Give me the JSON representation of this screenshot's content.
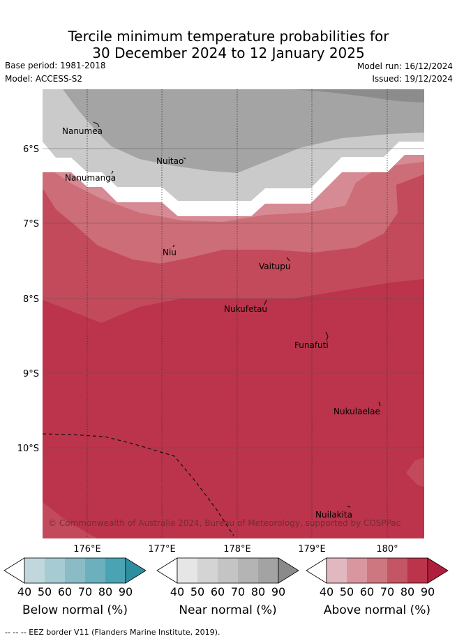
{
  "title_line1": "Tercile minimum temperature probabilities for",
  "title_line2": "30 December 2024 to 12 January 2025",
  "base_period": "Base period: 1981-2018",
  "model": "Model: ACCESS-S2",
  "model_run": "Model run: 16/12/2024",
  "issued": "Issued: 19/12/2024",
  "copyright": "© Commonwealth of Australia 2024, Bureau of Meteorology, supported by COSPPac",
  "footer_note": "-- -- -- EEZ border V11 (Flanders Marine Institute, 2019).",
  "map": {
    "lon_labels": [
      "176°E",
      "177°E",
      "178°E",
      "179°E",
      "180°"
    ],
    "lat_labels": [
      "6°S",
      "7°S",
      "8°S",
      "9°S",
      "10°S"
    ],
    "places": [
      {
        "name": "Nanumea"
      },
      {
        "name": "Nuitao"
      },
      {
        "name": "Nanumanga"
      },
      {
        "name": "Niu"
      },
      {
        "name": "Vaitupu"
      },
      {
        "name": "Nukufetau"
      },
      {
        "name": "Funafuti"
      },
      {
        "name": "Nukulaelae"
      },
      {
        "name": "Nuilakita"
      }
    ]
  },
  "legends": [
    {
      "label": "Below normal (%)",
      "ticks": [
        "40",
        "50",
        "60",
        "70",
        "80",
        "90"
      ],
      "colors": [
        "#ffffff",
        "#c0d8dd",
        "#a6cbd2",
        "#8bbcc6",
        "#6cb0bd",
        "#4aa3b2",
        "#2e8e9f"
      ]
    },
    {
      "label": "Near normal (%)",
      "ticks": [
        "40",
        "50",
        "60",
        "70",
        "80",
        "90"
      ],
      "colors": [
        "#ffffff",
        "#e6e6e6",
        "#d4d4d4",
        "#c4c4c4",
        "#b4b4b4",
        "#a3a3a3",
        "#8a8a8a"
      ]
    },
    {
      "label": "Above normal (%)",
      "ticks": [
        "40",
        "50",
        "60",
        "70",
        "80",
        "90"
      ],
      "colors": [
        "#ffffff",
        "#e2b8c0",
        "#d9969f",
        "#cd7780",
        "#c35565",
        "#bb344b",
        "#b11e3d"
      ]
    }
  ]
}
